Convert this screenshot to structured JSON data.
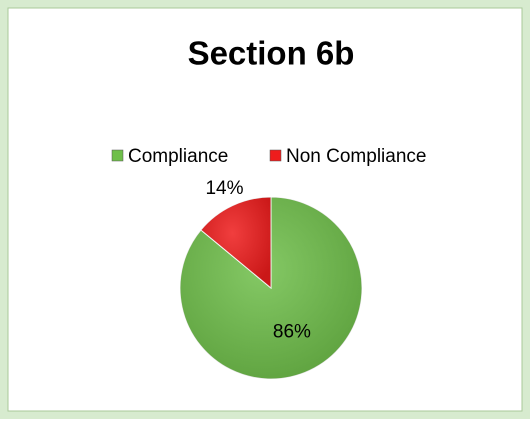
{
  "chart_data": {
    "type": "pie",
    "title": "Section 6b",
    "categories": [
      "Compliance",
      "Non Compliance"
    ],
    "values": [
      86,
      14
    ],
    "value_labels": [
      "86%",
      "14%"
    ],
    "colors": [
      "#6fbf4a",
      "#ee1c1c"
    ],
    "legend": "top"
  }
}
